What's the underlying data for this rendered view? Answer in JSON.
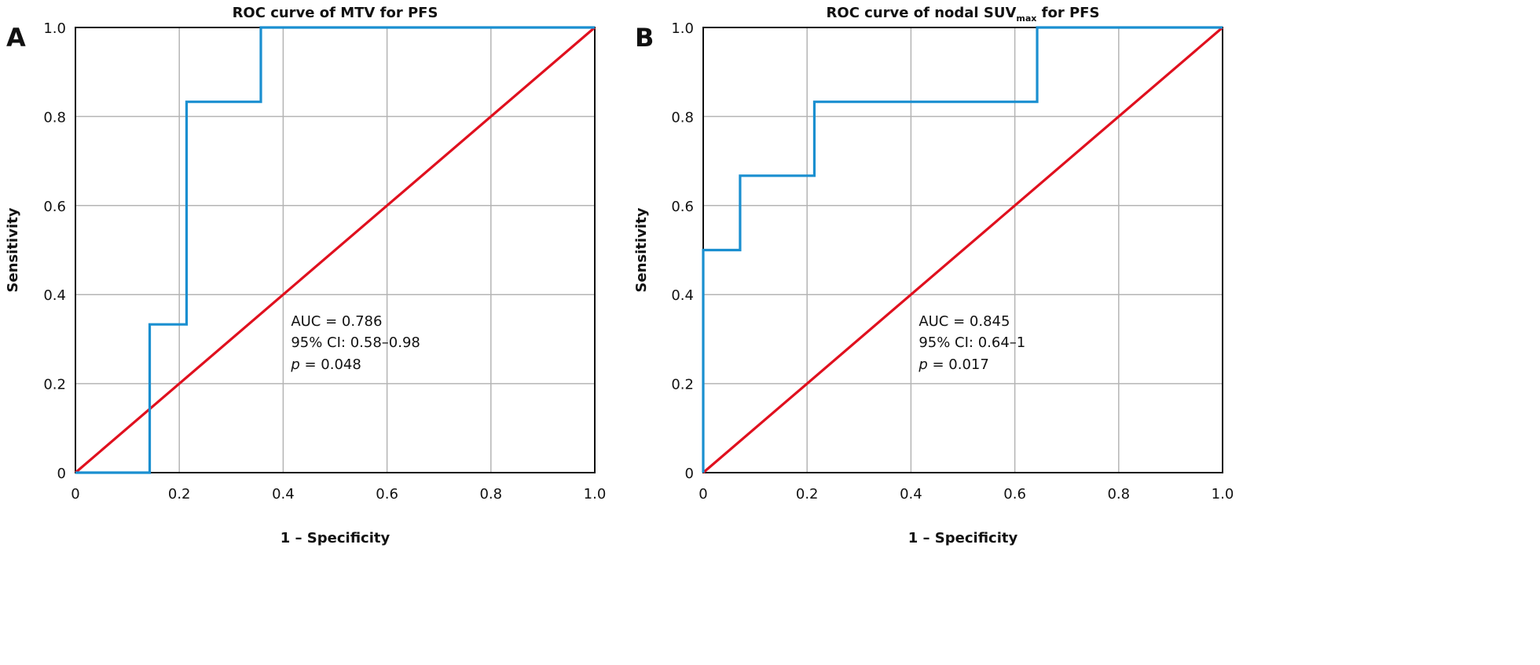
{
  "chart_data": [
    {
      "type": "line",
      "panel_label": "A",
      "title": "ROC curve of MTV for PFS",
      "xlabel": "1 – Specificity",
      "ylabel": "Sensitivity",
      "xlim": [
        0,
        1
      ],
      "ylim": [
        0,
        1
      ],
      "xticks": [
        "0",
        "0.2",
        "0.4",
        "0.6",
        "0.8",
        "1.0"
      ],
      "yticks": [
        "0",
        "0.2",
        "0.4",
        "0.6",
        "0.8",
        "1.0"
      ],
      "grid": true,
      "series": [
        {
          "role": "roc",
          "color": "#1a8fd0",
          "x": [
            0,
            0.143,
            0.143,
            0.214,
            0.214,
            0.357,
            0.357,
            1.0
          ],
          "y": [
            0,
            0,
            0.333,
            0.333,
            0.833,
            0.833,
            1.0,
            1.0
          ]
        },
        {
          "role": "reference",
          "color": "#e0101e",
          "x": [
            0,
            1
          ],
          "y": [
            0,
            1
          ]
        }
      ],
      "annotation": {
        "line1": "AUC = 0.786",
        "line2": "95% CI: 0.58–0.98",
        "p_label": "p",
        "p_value": " = 0.048"
      }
    },
    {
      "type": "line",
      "panel_label": "B",
      "title": "ROC curve of nodal SUV",
      "title_sub": "max",
      "title_tail": " for PFS",
      "xlabel": "1 – Specificity",
      "ylabel": "Sensitivity",
      "xlim": [
        0,
        1
      ],
      "ylim": [
        0,
        1
      ],
      "xticks": [
        "0",
        "0.2",
        "0.4",
        "0.6",
        "0.8",
        "1.0"
      ],
      "yticks": [
        "0",
        "0.2",
        "0.4",
        "0.6",
        "0.8",
        "1.0"
      ],
      "grid": true,
      "series": [
        {
          "role": "roc",
          "color": "#1a8fd0",
          "x": [
            0,
            0,
            0.071,
            0.071,
            0.214,
            0.214,
            0.643,
            0.643,
            1.0
          ],
          "y": [
            0,
            0.5,
            0.5,
            0.667,
            0.667,
            0.833,
            0.833,
            1.0,
            1.0
          ]
        },
        {
          "role": "reference",
          "color": "#e0101e",
          "x": [
            0,
            1
          ],
          "y": [
            0,
            1
          ]
        }
      ],
      "annotation": {
        "line1": "AUC = 0.845",
        "line2": "95% CI: 0.64–1",
        "p_label": "p",
        "p_value": " = 0.017"
      }
    }
  ]
}
